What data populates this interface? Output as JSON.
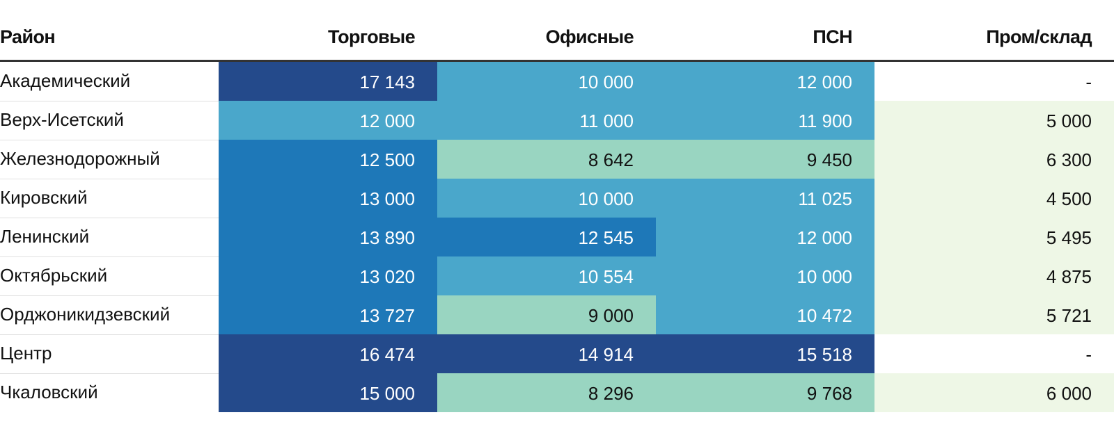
{
  "chart_data": {
    "type": "heatmap",
    "title": "",
    "columns": [
      "Район",
      "Торговые",
      "Офисные",
      "ПСН",
      "Пром/склад"
    ],
    "rows": [
      {
        "label": "Академический",
        "values": [
          17143,
          10000,
          12000,
          null
        ],
        "display": [
          "17 143",
          "10 000",
          "12 000",
          "-"
        ]
      },
      {
        "label": "Верх-Исетский",
        "values": [
          12000,
          11000,
          11900,
          5000
        ],
        "display": [
          "12 000",
          "11 000",
          "11 900",
          "5 000"
        ]
      },
      {
        "label": "Железнодорожный",
        "values": [
          12500,
          8642,
          9450,
          6300
        ],
        "display": [
          "12 500",
          "8 642",
          "9 450",
          "6 300"
        ]
      },
      {
        "label": "Кировский",
        "values": [
          13000,
          10000,
          11025,
          4500
        ],
        "display": [
          "13 000",
          "10 000",
          "11 025",
          "4 500"
        ]
      },
      {
        "label": "Ленинский",
        "values": [
          13890,
          12545,
          12000,
          5495
        ],
        "display": [
          "13 890",
          "12 545",
          "12 000",
          "5 495"
        ]
      },
      {
        "label": "Октябрьский",
        "values": [
          13020,
          10554,
          10000,
          4875
        ],
        "display": [
          "13 020",
          "10 554",
          "10 000",
          "4 875"
        ]
      },
      {
        "label": "Орджоникидзевский",
        "values": [
          13727,
          9000,
          10472,
          5721
        ],
        "display": [
          "13 727",
          "9 000",
          "10 472",
          "5 721"
        ]
      },
      {
        "label": "Центр",
        "values": [
          16474,
          14914,
          15518,
          null
        ],
        "display": [
          "16 474",
          "14 914",
          "15 518",
          "-"
        ]
      },
      {
        "label": "Чкаловский",
        "values": [
          15000,
          8296,
          9768,
          6000
        ],
        "display": [
          "15 000",
          "8 296",
          "9 768",
          "6 000"
        ]
      }
    ],
    "color_scale": [
      {
        "min": 0,
        "max": 8000,
        "fill": "#eef7e6",
        "text": "#111111"
      },
      {
        "min": 8000,
        "max": 10000,
        "fill": "#99d5c1",
        "text": "#111111"
      },
      {
        "min": 10000,
        "max": 12500,
        "fill": "#4aa7cb",
        "text": "#ffffff"
      },
      {
        "min": 12500,
        "max": 14000,
        "fill": "#1e78b8",
        "text": "#ffffff"
      },
      {
        "min": 14000,
        "max": 99999,
        "fill": "#244a8b",
        "text": "#ffffff"
      }
    ],
    "empty_fill": "#ffffff",
    "empty_text": "#111111"
  }
}
